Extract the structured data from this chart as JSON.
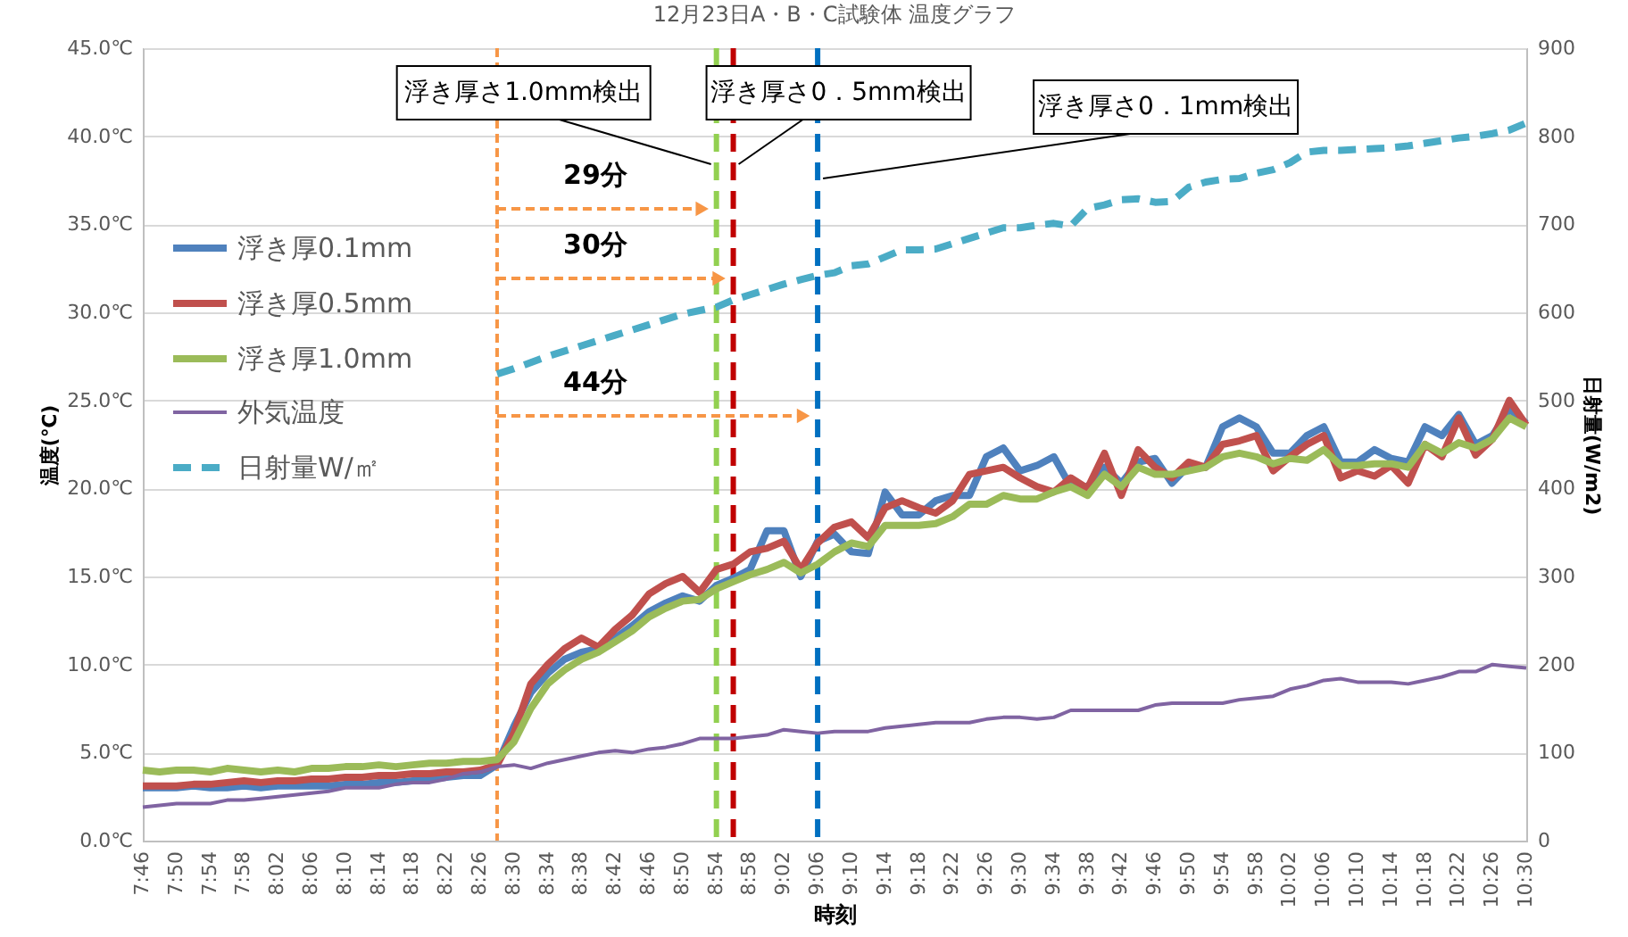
{
  "chart_data": {
    "type": "line",
    "title": "12月23日A・B・C試験体 温度グラフ",
    "xlabel": "時刻",
    "ylabel": "温度(℃)",
    "y2label": "日射量(W/m2)",
    "x": [
      7.7667,
      7.8,
      7.8333,
      7.8667,
      7.9,
      7.9333,
      7.9667,
      8,
      8.0333,
      8.0667,
      8.1,
      8.1333,
      8.1667,
      8.2,
      8.2333,
      8.2667,
      8.3,
      8.3333,
      8.3667,
      8.4,
      8.4333,
      8.4667,
      8.5,
      8.5333,
      8.5667,
      8.6,
      8.6333,
      8.6667,
      8.7,
      8.7333,
      8.7667,
      8.8,
      8.8333,
      8.8667,
      8.9,
      8.9333,
      8.9667,
      9,
      9.0333,
      9.0667,
      9.1,
      9.1333,
      9.1667,
      9.2,
      9.2333,
      9.2667,
      9.3,
      9.3333,
      9.3667,
      9.4,
      9.4333,
      9.4667,
      9.5,
      9.5333,
      9.5667,
      9.6,
      9.6333,
      9.6667,
      9.7,
      9.7333,
      9.7667,
      9.8,
      9.8333,
      9.8667,
      9.9,
      9.9333,
      9.9667,
      10,
      10.0333,
      10.0667,
      10.1,
      10.1333,
      10.1667,
      10.2,
      10.2333,
      10.2667,
      10.3,
      10.3333,
      10.3667,
      10.4,
      10.4333,
      10.4667,
      10.5
    ],
    "series": [
      {
        "name": "浮き厚0.1mm",
        "color": "#4f81bd",
        "line_style": "solid",
        "values": [
          3.0,
          3.0,
          3.0,
          3.1,
          3.0,
          3.0,
          3.1,
          3.0,
          3.1,
          3.1,
          3.1,
          3.1,
          3.2,
          3.2,
          3.3,
          3.3,
          3.4,
          3.5,
          3.6,
          3.7,
          3.7,
          4.3,
          6.5,
          8.4,
          9.5,
          10.3,
          10.7,
          10.9,
          11.5,
          12.2,
          13.0,
          13.5,
          13.9,
          13.6,
          14.5,
          14.9,
          15.4,
          17.6,
          17.6,
          15.0,
          17.0,
          17.4,
          16.4,
          16.3,
          19.8,
          18.5,
          18.5,
          19.3,
          19.6,
          19.6,
          21.8,
          22.3,
          21.0,
          21.3,
          21.8,
          20.1,
          20.1,
          21.2,
          20.3,
          21.5,
          21.7,
          20.3,
          21.3,
          21.2,
          23.5,
          24.0,
          23.5,
          22.0,
          22.0,
          23.0,
          23.5,
          21.5,
          21.5,
          22.2,
          21.7,
          21.5,
          23.5,
          23.0,
          24.2,
          22.5,
          23.0,
          24.5,
          23.7
        ]
      },
      {
        "name": "浮き厚0.5mm",
        "color": "#c0504d",
        "line_style": "solid",
        "values": [
          3.1,
          3.1,
          3.1,
          3.2,
          3.2,
          3.3,
          3.4,
          3.3,
          3.4,
          3.4,
          3.5,
          3.5,
          3.6,
          3.6,
          3.7,
          3.7,
          3.8,
          3.8,
          3.9,
          3.9,
          4.0,
          4.3,
          6.1,
          8.9,
          10.0,
          10.9,
          11.5,
          11.0,
          12.0,
          12.8,
          14.0,
          14.6,
          15.0,
          14.1,
          15.4,
          15.7,
          16.4,
          16.6,
          17.0,
          15.4,
          16.9,
          17.8,
          18.1,
          17.2,
          18.9,
          19.3,
          18.9,
          18.6,
          19.3,
          20.8,
          21.0,
          21.2,
          20.6,
          20.1,
          19.8,
          20.6,
          20.0,
          22.0,
          19.6,
          22.2,
          21.2,
          20.6,
          21.5,
          21.2,
          22.5,
          22.7,
          23.0,
          21.0,
          21.8,
          22.5,
          23.0,
          20.6,
          21.0,
          20.7,
          21.3,
          20.3,
          22.5,
          21.8,
          24.0,
          21.9,
          22.8,
          25.0,
          23.6
        ]
      },
      {
        "name": "浮き厚1.0mm",
        "color": "#9bbb59",
        "line_style": "solid",
        "values": [
          4.0,
          3.9,
          4.0,
          4.0,
          3.9,
          4.1,
          4.0,
          3.9,
          4.0,
          3.9,
          4.1,
          4.1,
          4.2,
          4.2,
          4.3,
          4.2,
          4.3,
          4.4,
          4.4,
          4.5,
          4.5,
          4.6,
          5.6,
          7.5,
          8.9,
          9.7,
          10.3,
          10.7,
          11.3,
          11.9,
          12.7,
          13.2,
          13.6,
          13.7,
          14.3,
          14.7,
          15.1,
          15.4,
          15.8,
          15.2,
          15.7,
          16.4,
          16.9,
          16.7,
          17.9,
          17.9,
          17.9,
          18.0,
          18.4,
          19.1,
          19.1,
          19.6,
          19.4,
          19.4,
          19.8,
          20.1,
          19.6,
          20.8,
          20.1,
          21.2,
          20.8,
          20.8,
          21.0,
          21.2,
          21.8,
          22.0,
          21.8,
          21.4,
          21.7,
          21.6,
          22.2,
          21.3,
          21.3,
          21.4,
          21.4,
          21.2,
          22.5,
          22.0,
          22.6,
          22.3,
          22.8,
          24.0,
          23.5
        ]
      },
      {
        "name": "外気温度",
        "color": "#8064a2",
        "line_style": "solid",
        "values": [
          1.9,
          2.0,
          2.1,
          2.1,
          2.1,
          2.3,
          2.3,
          2.4,
          2.5,
          2.6,
          2.7,
          2.8,
          3.0,
          3.0,
          3.0,
          3.2,
          3.3,
          3.3,
          3.5,
          3.8,
          3.9,
          4.2,
          4.3,
          4.1,
          4.4,
          4.6,
          4.8,
          5.0,
          5.1,
          5.0,
          5.2,
          5.3,
          5.5,
          5.8,
          5.8,
          5.8,
          5.9,
          6.0,
          6.3,
          6.2,
          6.1,
          6.2,
          6.2,
          6.2,
          6.4,
          6.5,
          6.6,
          6.7,
          6.7,
          6.7,
          6.9,
          7.0,
          7.0,
          6.9,
          7.0,
          7.4,
          7.4,
          7.4,
          7.4,
          7.4,
          7.7,
          7.8,
          7.8,
          7.8,
          7.8,
          8.0,
          8.1,
          8.2,
          8.6,
          8.8,
          9.1,
          9.2,
          9.0,
          9.0,
          9.0,
          8.9,
          9.1,
          9.3,
          9.6,
          9.6,
          10.0,
          9.9,
          9.8
        ]
      },
      {
        "name": "日射量W/㎡",
        "color": "#4bacc6",
        "line_style": "dashed",
        "axis": "y2",
        "values": [
          null,
          null,
          null,
          null,
          null,
          null,
          null,
          null,
          null,
          null,
          null,
          null,
          null,
          null,
          null,
          null,
          null,
          null,
          null,
          null,
          null,
          530,
          536,
          543,
          550,
          556,
          562,
          568,
          574,
          580,
          586,
          592,
          598,
          602,
          606,
          614,
          620,
          626,
          632,
          637,
          642,
          645,
          653,
          655,
          663,
          671,
          671,
          672,
          678,
          684,
          690,
          696,
          696,
          699,
          701,
          698,
          718,
          722,
          728,
          729,
          725,
          726,
          742,
          748,
          751,
          752,
          758,
          762,
          770,
          782,
          784,
          784,
          785,
          786,
          787,
          789,
          792,
          795,
          798,
          800,
          803,
          807,
          815
        ]
      }
    ],
    "xlim": [
      7.7667,
      10.5
    ],
    "xticks": [
      {
        "value": 7.7667,
        "label": "7:46"
      },
      {
        "value": 7.8333,
        "label": "7:50"
      },
      {
        "value": 7.9,
        "label": "7:54"
      },
      {
        "value": 7.9667,
        "label": "7:58"
      },
      {
        "value": 8.0333,
        "label": "8:02"
      },
      {
        "value": 8.1,
        "label": "8:06"
      },
      {
        "value": 8.1667,
        "label": "8:10"
      },
      {
        "value": 8.2333,
        "label": "8:14"
      },
      {
        "value": 8.3,
        "label": "8:18"
      },
      {
        "value": 8.3667,
        "label": "8:22"
      },
      {
        "value": 8.4333,
        "label": "8:26"
      },
      {
        "value": 8.5,
        "label": "8:30"
      },
      {
        "value": 8.5667,
        "label": "8:34"
      },
      {
        "value": 8.6333,
        "label": "8:38"
      },
      {
        "value": 8.7,
        "label": "8:42"
      },
      {
        "value": 8.7667,
        "label": "8:46"
      },
      {
        "value": 8.8333,
        "label": "8:50"
      },
      {
        "value": 8.9,
        "label": "8:54"
      },
      {
        "value": 8.9667,
        "label": "8:58"
      },
      {
        "value": 9.0333,
        "label": "9:02"
      },
      {
        "value": 9.1,
        "label": "9:06"
      },
      {
        "value": 9.1667,
        "label": "9:10"
      },
      {
        "value": 9.2333,
        "label": "9:14"
      },
      {
        "value": 9.3,
        "label": "9:18"
      },
      {
        "value": 9.3667,
        "label": "9:22"
      },
      {
        "value": 9.4333,
        "label": "9:26"
      },
      {
        "value": 9.5,
        "label": "9:30"
      },
      {
        "value": 9.5667,
        "label": "9:34"
      },
      {
        "value": 9.6333,
        "label": "9:38"
      },
      {
        "value": 9.7,
        "label": "9:42"
      },
      {
        "value": 9.7667,
        "label": "9:46"
      },
      {
        "value": 9.8333,
        "label": "9:50"
      },
      {
        "value": 9.9,
        "label": "9:54"
      },
      {
        "value": 9.9667,
        "label": "9:58"
      },
      {
        "value": 10.0333,
        "label": "10:02"
      },
      {
        "value": 10.1,
        "label": "10:06"
      },
      {
        "value": 10.1667,
        "label": "10:10"
      },
      {
        "value": 10.2333,
        "label": "10:14"
      },
      {
        "value": 10.3,
        "label": "10:18"
      },
      {
        "value": 10.3667,
        "label": "10:22"
      },
      {
        "value": 10.4333,
        "label": "10:26"
      },
      {
        "value": 10.5,
        "label": "10:30"
      }
    ],
    "ylim": [
      0,
      45
    ],
    "yticks": [
      {
        "value": 0,
        "label": "0.0℃"
      },
      {
        "value": 5,
        "label": "5.0℃"
      },
      {
        "value": 10,
        "label": "10.0℃"
      },
      {
        "value": 15,
        "label": "15.0℃"
      },
      {
        "value": 20,
        "label": "20.0℃"
      },
      {
        "value": 25,
        "label": "25.0℃"
      },
      {
        "value": 30,
        "label": "30.0℃"
      },
      {
        "value": 35,
        "label": "35.0℃"
      },
      {
        "value": 40,
        "label": "40.0℃"
      },
      {
        "value": 45,
        "label": "45.0℃"
      }
    ],
    "y2lim": [
      0,
      900
    ],
    "y2ticks": [
      0,
      100,
      200,
      300,
      400,
      500,
      600,
      700,
      800,
      900
    ],
    "ref_lines": [
      {
        "axis": "x",
        "value": 8.4667,
        "color": "#f79646",
        "line_style": "dashed"
      },
      {
        "axis": "x",
        "value": 8.9,
        "label": "浮き厚さ1.0mm検出",
        "color": "#92d050",
        "line_style": "dashed"
      },
      {
        "axis": "x",
        "value": 8.9333,
        "label": "浮き厚さ0．5mm検出",
        "color": "#c00000",
        "line_style": "dashed"
      },
      {
        "axis": "x",
        "value": 9.1,
        "label": "浮き厚さ0．1mm検出",
        "color": "#0070c0",
        "line_style": "dashed"
      }
    ],
    "annotations": [
      "29分",
      "30分",
      "44分"
    ],
    "grid": "y",
    "legend": "left"
  }
}
